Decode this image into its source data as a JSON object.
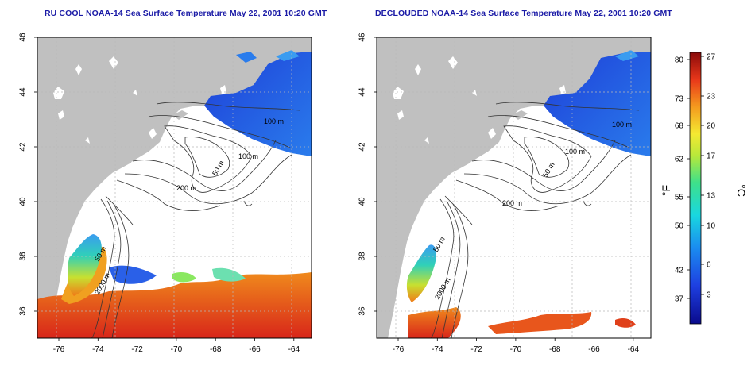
{
  "left_panel": {
    "title": "RU COOL NOAA-14 Sea Surface Temperature May 22, 2001 10:20 GMT",
    "contour_labels": [
      "100 m",
      "100 m",
      "50 m",
      "200 m",
      "2000 m"
    ],
    "contour_label_50b": "50 m"
  },
  "right_panel": {
    "title": "DECLOUDED NOAA-14 Sea Surface Temperature May 22, 2001 10:20 GMT",
    "contour_labels": [
      "100 m",
      "100 m",
      "50 m",
      "200 m",
      "2000 m"
    ],
    "contour_label_50b": "50 m"
  },
  "axes": {
    "lat_ticks": [
      "36",
      "38",
      "40",
      "42",
      "44",
      "46"
    ],
    "lon_ticks": [
      "-76",
      "-74",
      "-72",
      "-70",
      "-68",
      "-66",
      "-64"
    ]
  },
  "colorbar": {
    "fahrenheit_ticks": [
      "80",
      "73",
      "68",
      "62",
      "55",
      "50",
      "42",
      "37"
    ],
    "celsius_ticks": [
      "27",
      "23",
      "20",
      "17",
      "13",
      "10",
      "6",
      "3"
    ],
    "unit_f": "°F",
    "unit_c": "°C"
  },
  "colors": {
    "land": "#c0c0c0",
    "ocean": "#ffffff",
    "title": "#1a1aa6",
    "grid": "#b8b8b8",
    "contour": "#333333"
  }
}
